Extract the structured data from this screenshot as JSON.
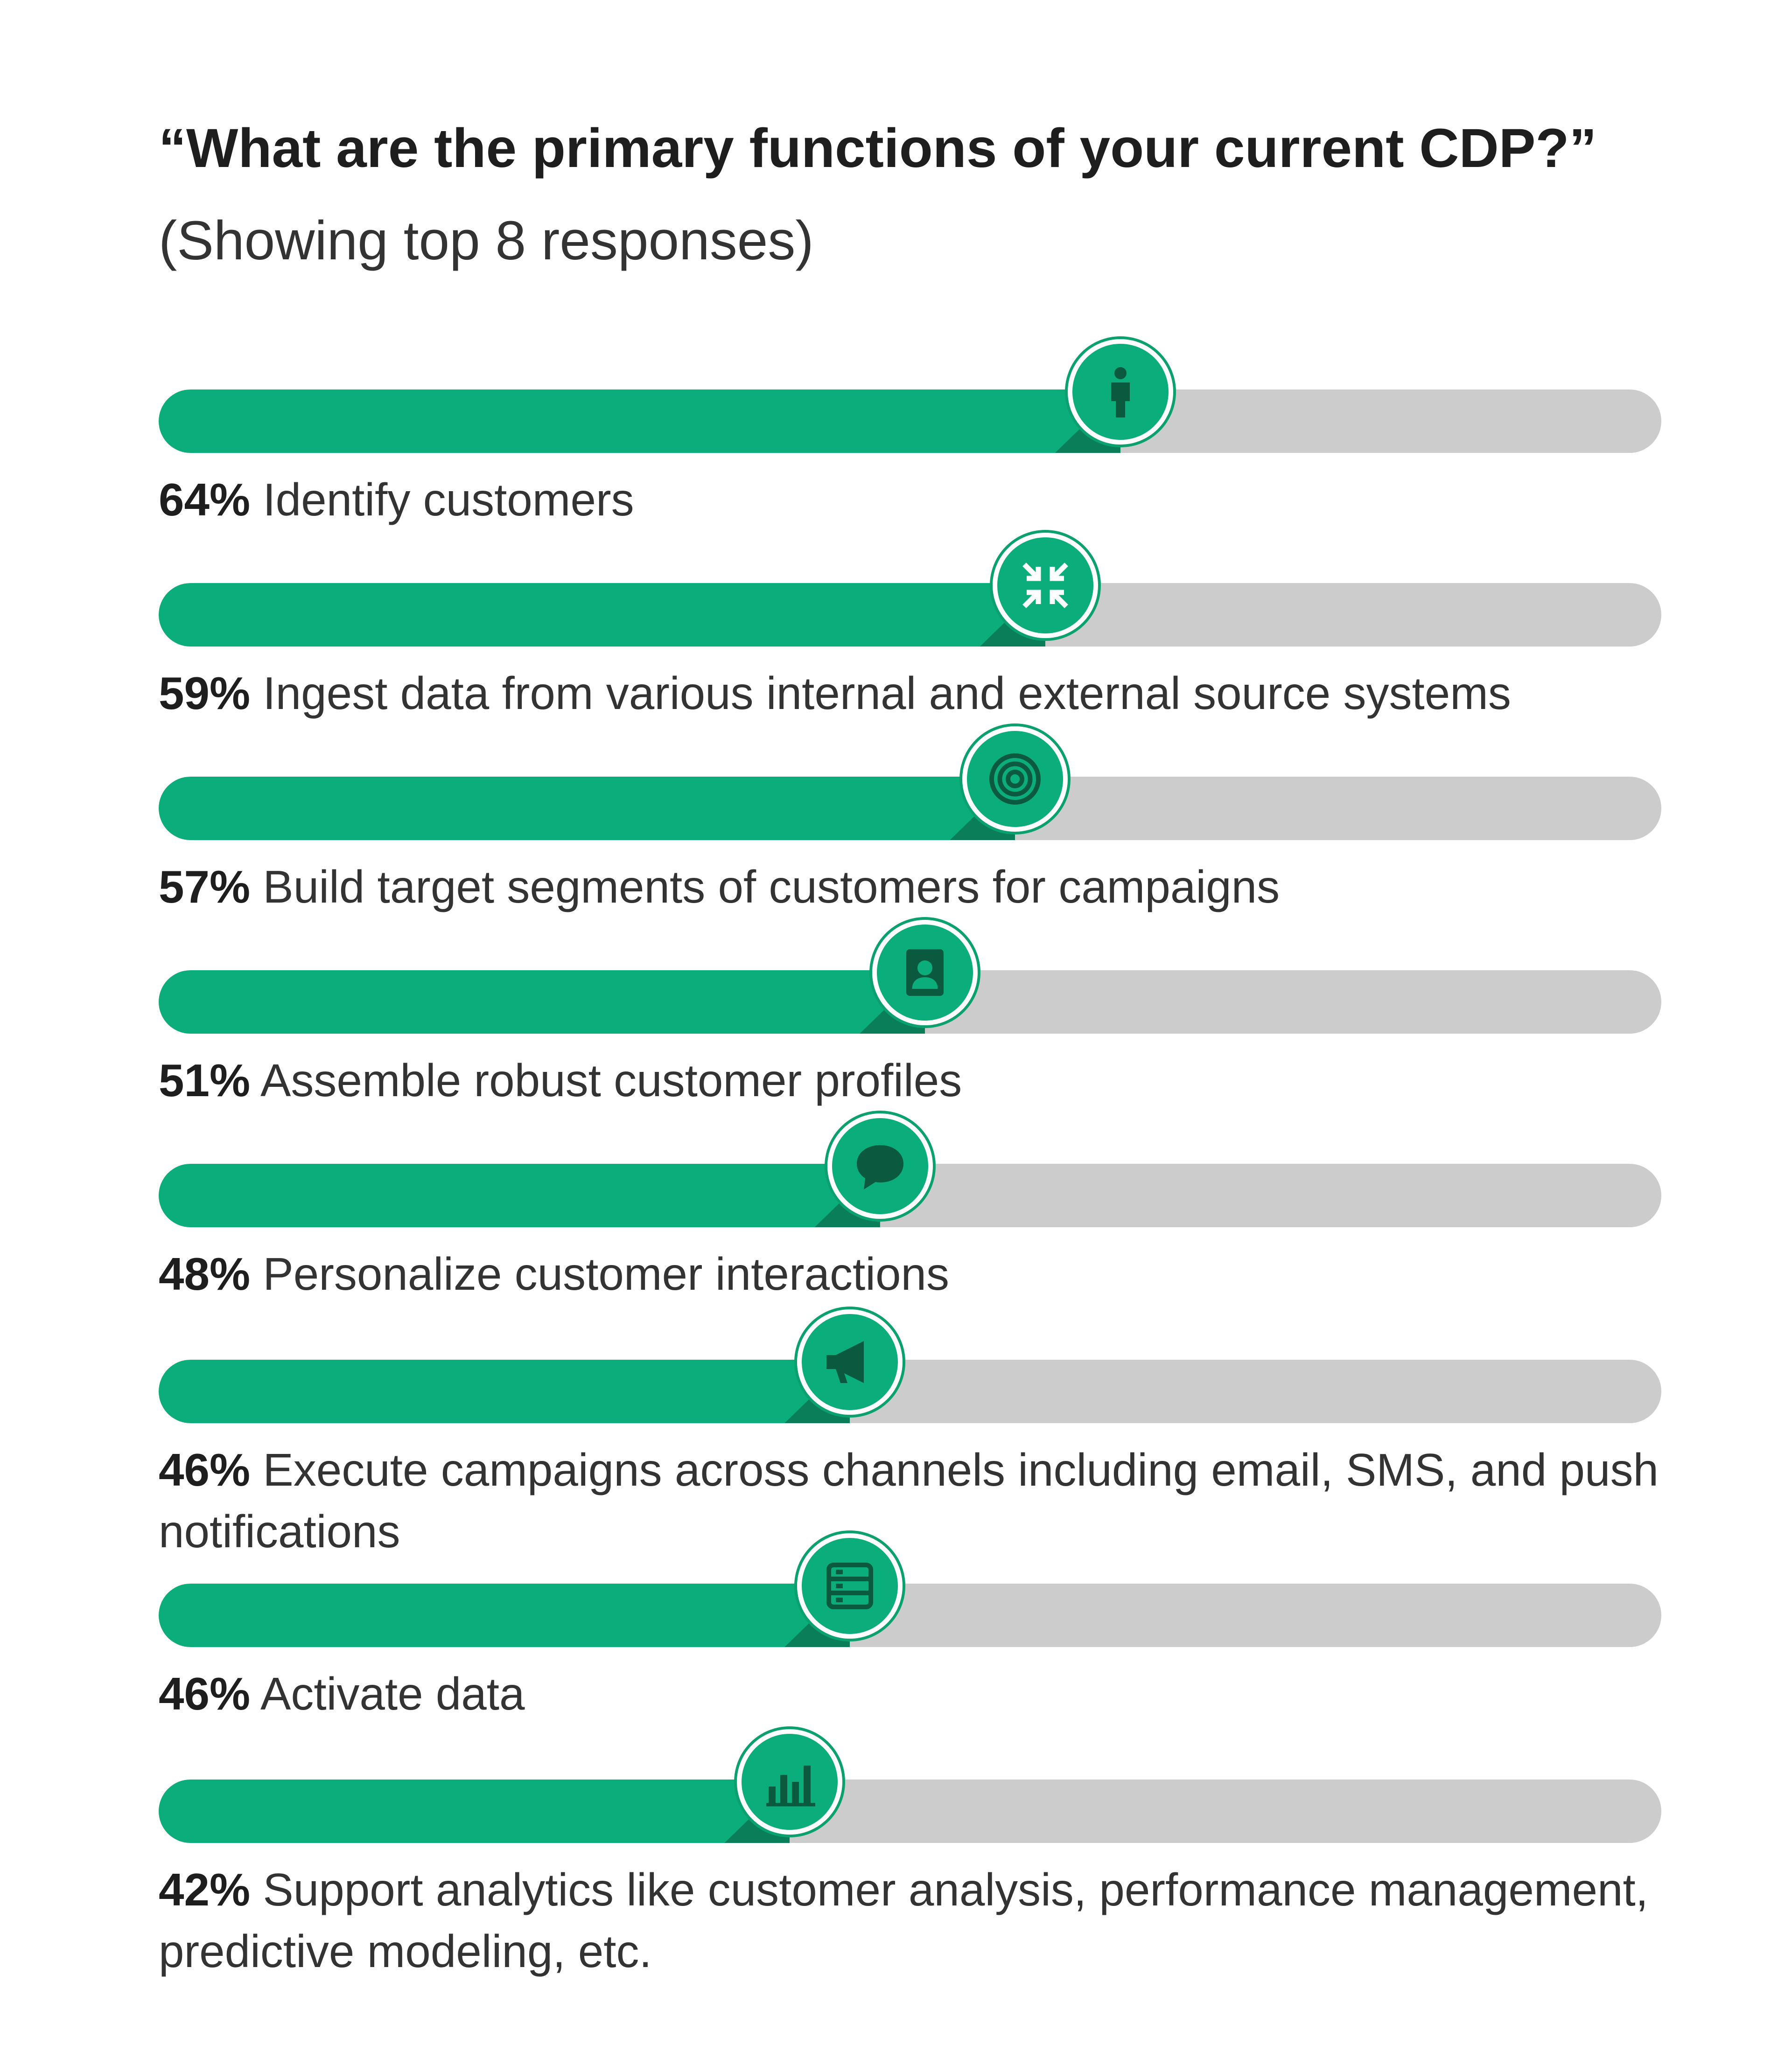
{
  "title": "“What are the primary functions of your current CDP?”",
  "subtitle": "(Showing top 8 responses)",
  "colors": {
    "fill": "#0bae7a",
    "track": "#cccccc",
    "icon": "#0b5a3f"
  },
  "chart_data": {
    "type": "bar",
    "orientation": "horizontal",
    "xlim": [
      0,
      100
    ],
    "unit": "%",
    "categories": [
      "Identify customers",
      "Ingest data from various internal and external source systems",
      "Build target segments of customers for campaigns",
      "Assemble robust customer profiles",
      "Personalize customer interactions",
      "Execute campaigns across channels including email, SMS, and push notifications",
      "Activate data",
      "Support analytics like customer analysis, performance management, predictive modeling, etc."
    ],
    "values": [
      64,
      59,
      57,
      51,
      48,
      46,
      46,
      42
    ],
    "value_labels": [
      "64%",
      "59%",
      "57%",
      "51%",
      "48%",
      "46%",
      "46%",
      "42%"
    ],
    "icons": [
      "person-icon",
      "compress-arrows-icon",
      "target-icon",
      "profile-card-icon",
      "chat-bubble-icon",
      "megaphone-icon",
      "database-icon",
      "bar-chart-icon"
    ]
  }
}
